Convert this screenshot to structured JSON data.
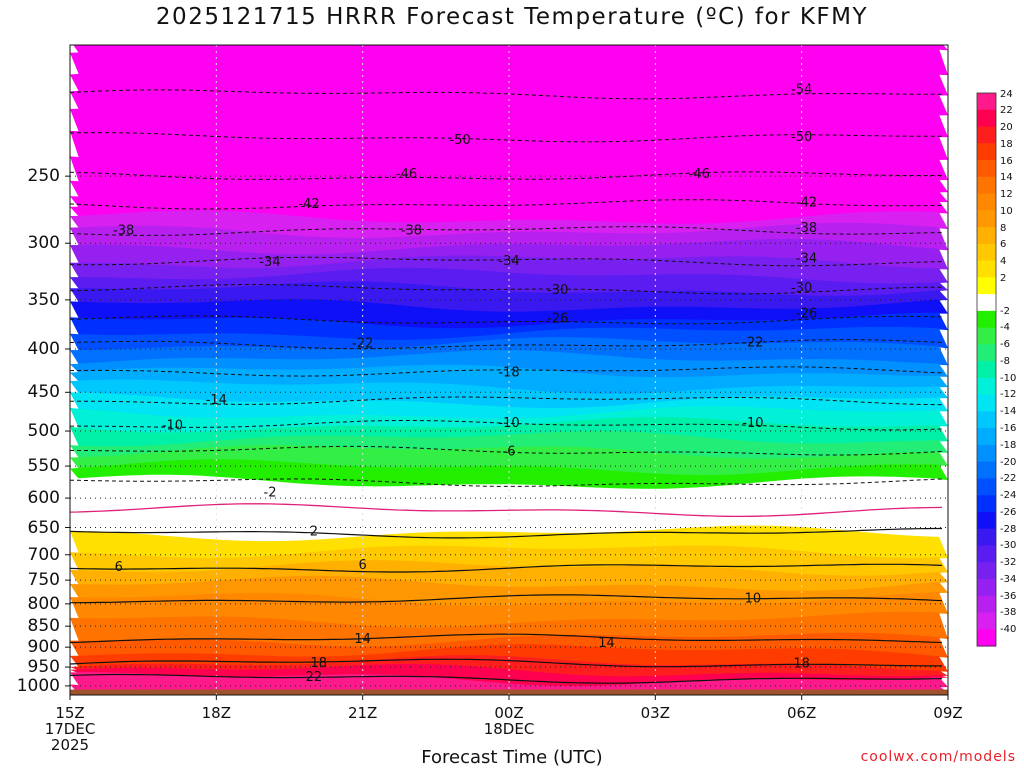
{
  "chart_data": {
    "type": "heatmap",
    "title": "2025121715 HRRR Forecast Temperature (ºC) for KFMY",
    "xlabel": "Forecast Time (UTC)",
    "ylabel": "",
    "x_ticks": [
      {
        "hour": 0,
        "lines": [
          "15Z",
          "17DEC",
          "2025"
        ]
      },
      {
        "hour": 3,
        "lines": [
          "18Z"
        ]
      },
      {
        "hour": 6,
        "lines": [
          "21Z"
        ]
      },
      {
        "hour": 9,
        "lines": [
          "00Z",
          "18DEC"
        ]
      },
      {
        "hour": 12,
        "lines": [
          "03Z"
        ]
      },
      {
        "hour": 15,
        "lines": [
          "06Z"
        ]
      },
      {
        "hour": 18,
        "lines": [
          "09Z"
        ]
      }
    ],
    "x_range_hours": [
      0,
      18
    ],
    "y_axis": "pressure (hPa), inverted",
    "y_ticks": [
      250,
      300,
      350,
      400,
      450,
      500,
      550,
      600,
      650,
      700,
      750,
      800,
      850,
      900,
      950,
      1000
    ],
    "y_range": [
      1025,
      175
    ],
    "temperature_profile_approx": [
      {
        "p": 175,
        "t": -58
      },
      {
        "p": 200,
        "t": -54
      },
      {
        "p": 225,
        "t": -50
      },
      {
        "p": 250,
        "t": -46
      },
      {
        "p": 270,
        "t": -42
      },
      {
        "p": 290,
        "t": -38
      },
      {
        "p": 315,
        "t": -34
      },
      {
        "p": 340,
        "t": -30
      },
      {
        "p": 370,
        "t": -26
      },
      {
        "p": 395,
        "t": -22
      },
      {
        "p": 425,
        "t": -18
      },
      {
        "p": 460,
        "t": -14
      },
      {
        "p": 492,
        "t": -10
      },
      {
        "p": 528,
        "t": -6
      },
      {
        "p": 575,
        "t": -2
      },
      {
        "p": 620,
        "t": 0
      },
      {
        "p": 660,
        "t": 2
      },
      {
        "p": 725,
        "t": 6
      },
      {
        "p": 790,
        "t": 10
      },
      {
        "p": 880,
        "t": 14
      },
      {
        "p": 940,
        "t": 18
      },
      {
        "p": 980,
        "t": 22
      },
      {
        "p": 1015,
        "t": 24
      }
    ],
    "contour_labels": [
      {
        "value": "-54",
        "hour": 15.0,
        "p": 197
      },
      {
        "value": "-50",
        "hour": 8.0,
        "p": 226
      },
      {
        "value": "-50",
        "hour": 15.0,
        "p": 224
      },
      {
        "value": "-46",
        "hour": 6.9,
        "p": 248
      },
      {
        "value": "-46",
        "hour": 12.9,
        "p": 248
      },
      {
        "value": "-42",
        "hour": 4.9,
        "p": 269
      },
      {
        "value": "-42",
        "hour": 15.1,
        "p": 268
      },
      {
        "value": "-38",
        "hour": 1.1,
        "p": 289
      },
      {
        "value": "-38",
        "hour": 7.0,
        "p": 289
      },
      {
        "value": "-38",
        "hour": 15.1,
        "p": 287
      },
      {
        "value": "-34",
        "hour": 4.1,
        "p": 315
      },
      {
        "value": "-34",
        "hour": 9.0,
        "p": 314
      },
      {
        "value": "-34",
        "hour": 15.1,
        "p": 312
      },
      {
        "value": "-30",
        "hour": 10.0,
        "p": 340
      },
      {
        "value": "-30",
        "hour": 15.0,
        "p": 338
      },
      {
        "value": "-26",
        "hour": 10.0,
        "p": 367
      },
      {
        "value": "-26",
        "hour": 15.1,
        "p": 362
      },
      {
        "value": "-22",
        "hour": 6.0,
        "p": 393
      },
      {
        "value": "-22",
        "hour": 14.0,
        "p": 392
      },
      {
        "value": "-18",
        "hour": 9.0,
        "p": 425
      },
      {
        "value": "-14",
        "hour": 3.0,
        "p": 458
      },
      {
        "value": "-10",
        "hour": 2.1,
        "p": 491
      },
      {
        "value": "-10",
        "hour": 9.0,
        "p": 488
      },
      {
        "value": "-10",
        "hour": 14.0,
        "p": 488
      },
      {
        "value": "-6",
        "hour": 9.0,
        "p": 527
      },
      {
        "value": "-2",
        "hour": 4.1,
        "p": 589
      },
      {
        "value": "2",
        "hour": 5.0,
        "p": 655
      },
      {
        "value": "6",
        "hour": 1.0,
        "p": 722
      },
      {
        "value": "6",
        "hour": 6.0,
        "p": 718
      },
      {
        "value": "10",
        "hour": 14.0,
        "p": 786
      },
      {
        "value": "14",
        "hour": 6.0,
        "p": 878
      },
      {
        "value": "14",
        "hour": 11.0,
        "p": 888
      },
      {
        "value": "18",
        "hour": 5.1,
        "p": 937
      },
      {
        "value": "18",
        "hour": 15.0,
        "p": 938
      },
      {
        "value": "22",
        "hour": 5.0,
        "p": 973
      }
    ],
    "colorbar": {
      "labels": [
        "24",
        "22",
        "20",
        "18",
        "16",
        "14",
        "12",
        "10",
        "8",
        "6",
        "4",
        "2",
        "-2",
        "-4",
        "-6",
        "-8",
        "-10",
        "-12",
        "-14",
        "-16",
        "-18",
        "-20",
        "-22",
        "-24",
        "-26",
        "-28",
        "-30",
        "-32",
        "-34",
        "-36",
        "-38",
        "-40"
      ],
      "colors": [
        "#ff1a8c",
        "#ff0050",
        "#ff1e1e",
        "#ff3c00",
        "#ff5a00",
        "#ff7300",
        "#ff8800",
        "#ff9800",
        "#ffb000",
        "#ffc800",
        "#ffe000",
        "#ffff00",
        "#ffffff",
        "#22ee00",
        "#33ee44",
        "#22ee77",
        "#00f0a8",
        "#00f0d8",
        "#00e4f4",
        "#00c8ff",
        "#00acff",
        "#0090ff",
        "#0070ff",
        "#0050ff",
        "#0030ff",
        "#1010f8",
        "#3a18f0",
        "#5a1cf0",
        "#7820f0",
        "#9620f0",
        "#b820f0",
        "#d820f0",
        "#ff00f0"
      ]
    }
  },
  "credit": "coolwx.com/models"
}
